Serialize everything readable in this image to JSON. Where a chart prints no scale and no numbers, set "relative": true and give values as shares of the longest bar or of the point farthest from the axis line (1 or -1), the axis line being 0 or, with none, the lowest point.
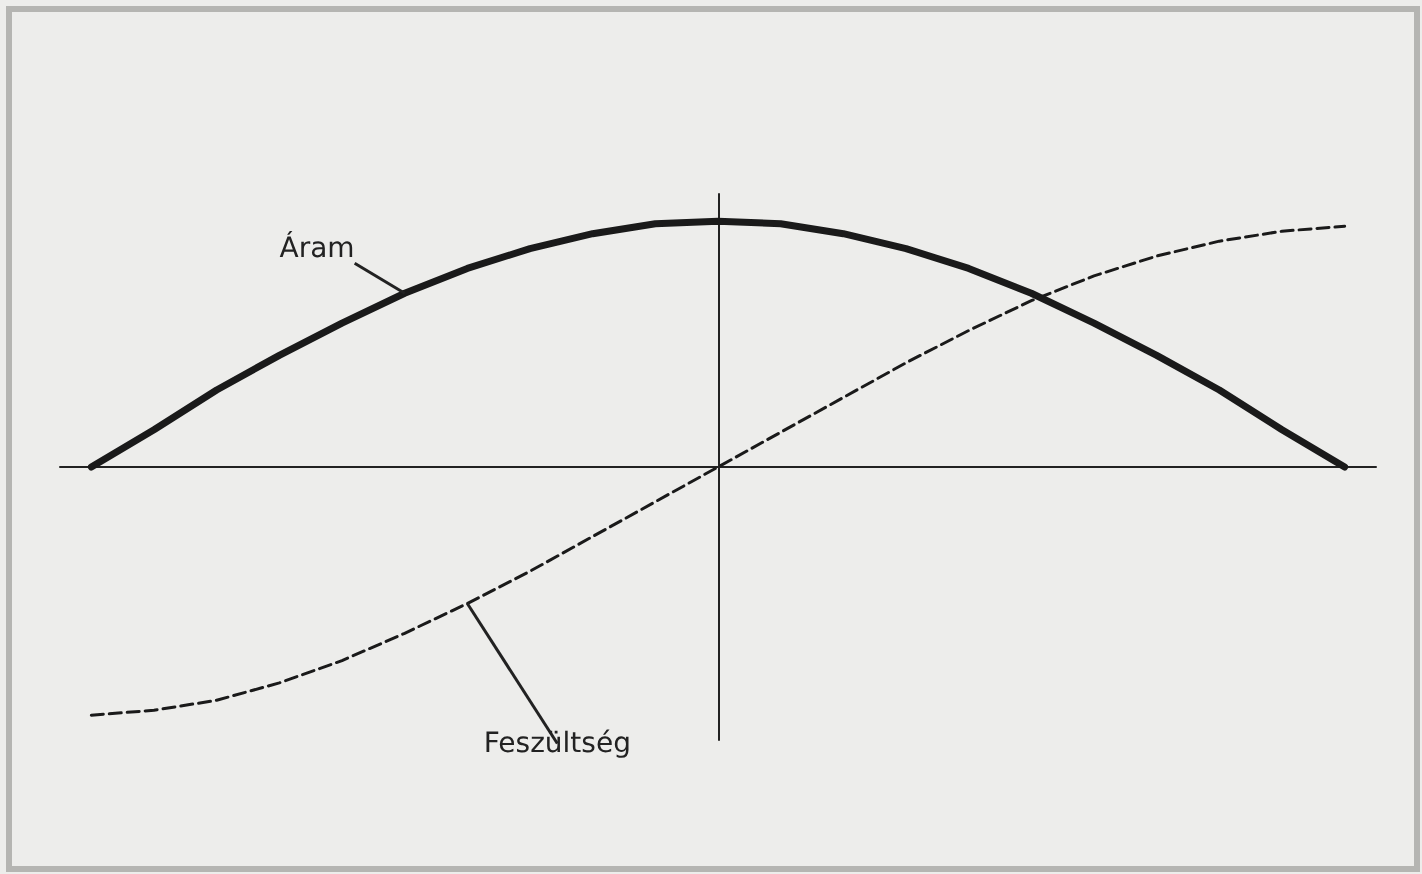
{
  "chart_data": {
    "type": "line",
    "relative": true,
    "categories": [
      null,
      null,
      null,
      null,
      null,
      null,
      null,
      null,
      null,
      null,
      null,
      null,
      null,
      null,
      null,
      null,
      null,
      null,
      null,
      null,
      null
    ],
    "series": [
      {
        "name": "Áram",
        "color": "#1a1a1a",
        "line_style": "solid",
        "values": [
          0,
          0.15,
          0.31,
          0.45,
          0.58,
          0.7,
          0.8,
          0.88,
          0.94,
          0.98,
          0.99,
          0.98,
          0.94,
          0.88,
          0.8,
          0.7,
          0.58,
          0.45,
          0.31,
          0.15,
          0
        ]
      },
      {
        "name": "Feszültség",
        "color": "#1a1a1a",
        "line_style": "dashed",
        "values": [
          -1,
          -0.98,
          -0.94,
          -0.87,
          -0.78,
          -0.67,
          -0.55,
          -0.42,
          -0.28,
          -0.14,
          0,
          0.14,
          0.28,
          0.42,
          0.55,
          0.67,
          0.77,
          0.85,
          0.91,
          0.95,
          0.97
        ]
      }
    ],
    "legend": false,
    "grid": false,
    "marker": "none"
  }
}
